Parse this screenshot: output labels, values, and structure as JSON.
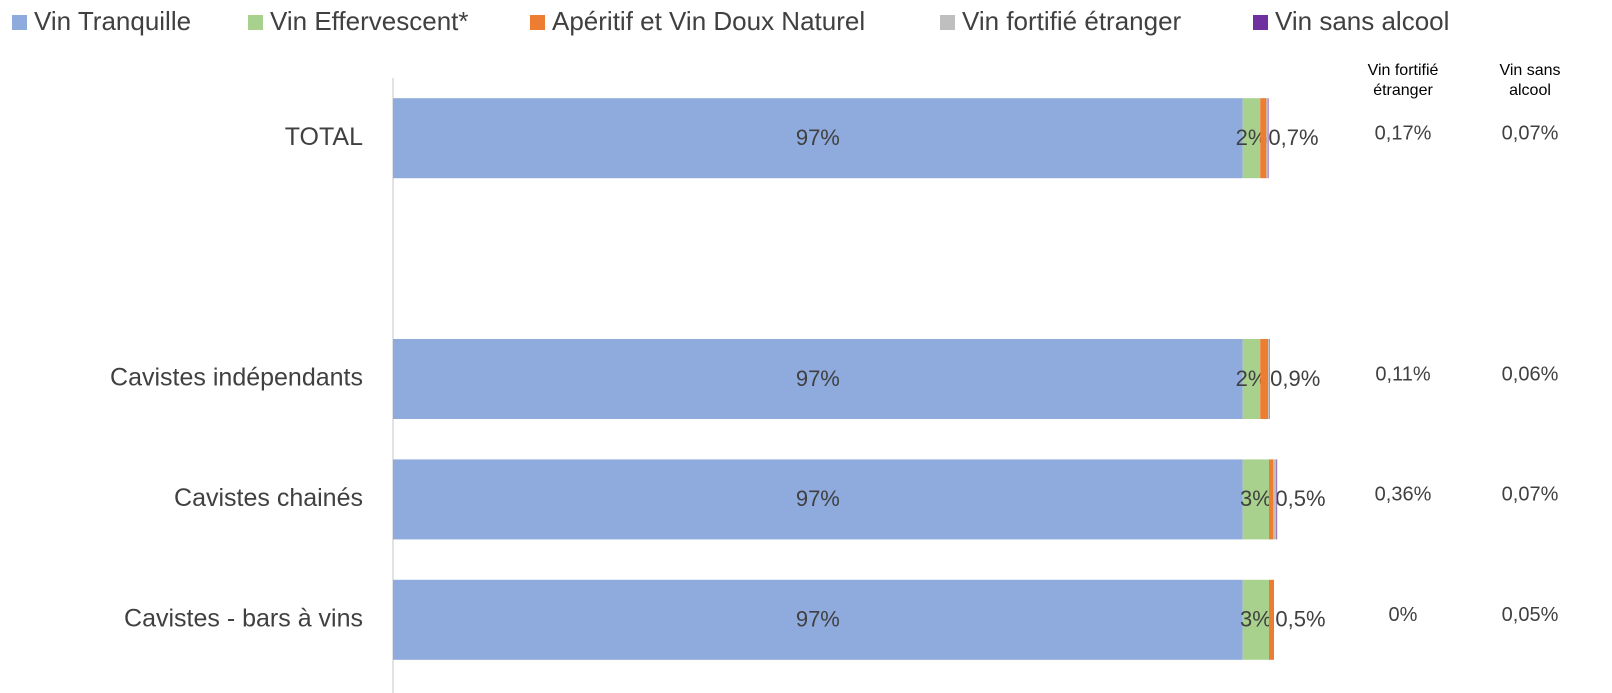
{
  "chart_data": {
    "type": "stacked_bar_horizontal",
    "categories": [
      "TOTAL",
      null,
      "Cavistes indépendants",
      "Cavistes chainés",
      "Cavistes - bars à vins"
    ],
    "xlim": [
      0,
      100
    ],
    "series": [
      {
        "name": "Vin Tranquille",
        "color": "#8faadc",
        "values": [
          97,
          null,
          97,
          97,
          97
        ],
        "value_labels": [
          "97%",
          null,
          "97%",
          "97%",
          "97%"
        ]
      },
      {
        "name": "Vin Effervescent*",
        "color": "#a9d18e",
        "values": [
          2,
          null,
          2,
          3,
          3
        ],
        "value_labels": [
          "2%",
          null,
          "2%",
          "3%",
          "3%"
        ]
      },
      {
        "name": "Apéritif et Vin Doux Naturel",
        "color": "#ed7d31",
        "values": [
          0.7,
          null,
          0.9,
          0.5,
          0.5
        ],
        "value_labels": [
          "0,7%",
          null,
          "0,9%",
          "0,5%",
          "0,5%"
        ]
      },
      {
        "name": "Vin fortifié étranger",
        "color": "#bfbfbf",
        "values": [
          0.17,
          null,
          0.11,
          0.36,
          0
        ],
        "value_labels": [
          "0,17%",
          null,
          "0,11%",
          "0,36%",
          "0%"
        ]
      },
      {
        "name": "Vin sans alcool",
        "color": "#7030a0",
        "values": [
          0.07,
          null,
          0.06,
          0.07,
          0.05
        ],
        "value_labels": [
          "0,07%",
          null,
          "0,06%",
          "0,07%",
          "0,05%"
        ]
      }
    ],
    "column_headers": [
      "Vin fortifié étranger",
      "Vin sans alcool"
    ]
  }
}
